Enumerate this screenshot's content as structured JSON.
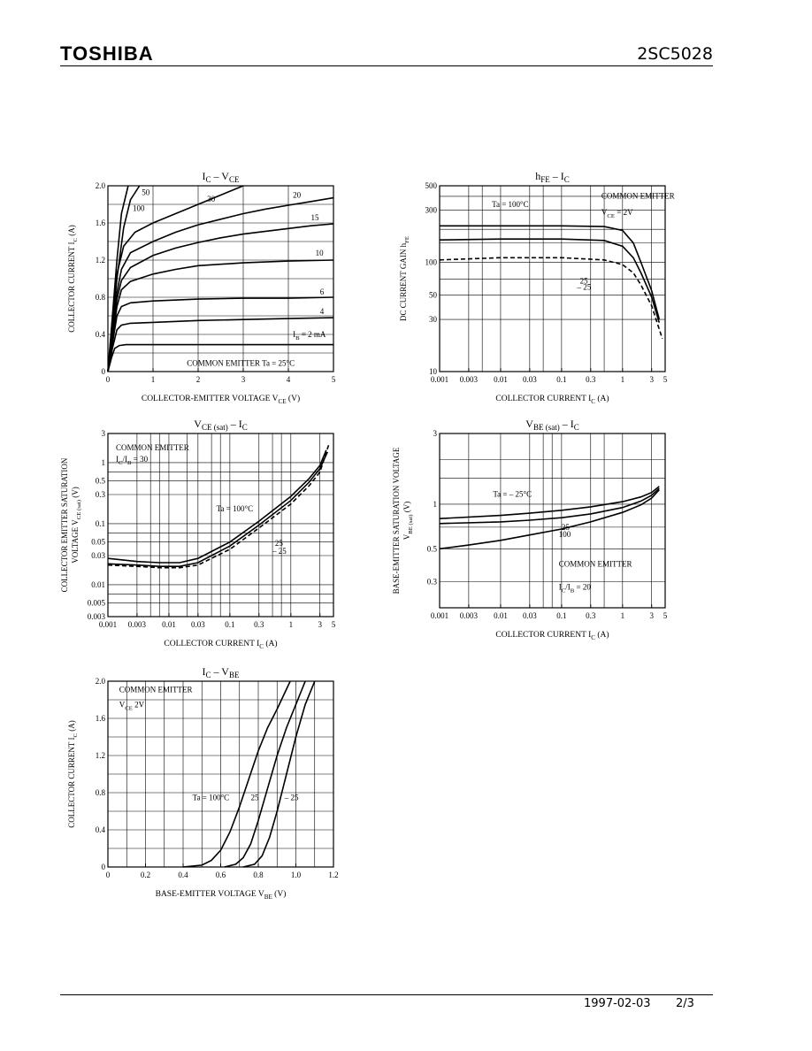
{
  "header": {
    "brand": "TOSHIBA",
    "part_number": "2SC5028"
  },
  "footer": {
    "date": "1997-02-03",
    "page": "2/3"
  },
  "chart_data": [
    {
      "id": "ic-vce",
      "type": "line",
      "title_main": "I",
      "title_sub": "C",
      "title_sep": "–",
      "title_main2": "V",
      "title_sub2": "CE",
      "xlabel": "COLLECTOR-EMITTER VOLTAGE   V",
      "xlabel_sub": "CE",
      "xlabel_unit": "(V)",
      "ylabel": "COLLECTOR CURRENT   I",
      "ylabel_sub": "C",
      "ylabel_unit": "(A)",
      "xscale": "linear",
      "yscale": "linear",
      "xlim": [
        0,
        5
      ],
      "ylim": [
        0,
        2.0
      ],
      "xticks": [
        0,
        1,
        2,
        3,
        4,
        5
      ],
      "xtick_labels": [
        "0",
        "1",
        "2",
        "3",
        "4",
        "5"
      ],
      "yticks": [
        0,
        0.4,
        0.8,
        1.2,
        1.6,
        2.0
      ],
      "ytick_labels": [
        "0",
        "0.4",
        "0.8",
        "1.2",
        "1.6",
        "2.0"
      ],
      "xgrid": [
        1,
        2,
        3,
        4
      ],
      "ygrid": [
        0.2,
        0.4,
        0.6,
        0.8,
        1.0,
        1.2,
        1.4,
        1.6,
        1.8
      ],
      "annotations": [
        {
          "text": "COMMON EMITTER    Ta = 25°C",
          "x": 1.75,
          "y": 0.06
        },
        {
          "text": "I",
          "sub": "B",
          "rest": " = 2 mA",
          "x": 4.1,
          "y": 0.37
        }
      ],
      "series": [
        {
          "label": "50",
          "label_x": 0.75,
          "label_y": 1.9,
          "x": [
            0,
            0.1,
            0.2,
            0.35,
            0.5,
            0.7
          ],
          "y": [
            0,
            0.5,
            1.0,
            1.55,
            1.85,
            2.0
          ]
        },
        {
          "label": "100",
          "label_x": 0.55,
          "label_y": 1.73,
          "x": [
            0,
            0.1,
            0.2,
            0.3,
            0.45
          ],
          "y": [
            0,
            0.6,
            1.2,
            1.7,
            2.0
          ]
        },
        {
          "label": "30",
          "label_x": 2.2,
          "label_y": 1.83,
          "x": [
            0,
            0.1,
            0.2,
            0.35,
            0.6,
            1.0,
            1.5,
            2.0,
            2.5,
            3.0
          ],
          "y": [
            0,
            0.55,
            1.05,
            1.35,
            1.5,
            1.6,
            1.7,
            1.8,
            1.9,
            2.0
          ]
        },
        {
          "label": "20",
          "label_x": 4.1,
          "label_y": 1.87,
          "x": [
            0,
            0.1,
            0.2,
            0.3,
            0.5,
            1.0,
            1.5,
            2.0,
            2.5,
            3.0,
            3.5,
            4.0,
            4.5,
            5.0
          ],
          "y": [
            0,
            0.45,
            0.85,
            1.1,
            1.28,
            1.4,
            1.5,
            1.58,
            1.64,
            1.7,
            1.75,
            1.79,
            1.83,
            1.87
          ]
        },
        {
          "label": "15",
          "label_x": 4.5,
          "label_y": 1.63,
          "x": [
            0,
            0.1,
            0.2,
            0.3,
            0.5,
            1.0,
            1.5,
            2.0,
            2.5,
            3.0,
            3.5,
            4.0,
            4.5,
            5.0
          ],
          "y": [
            0,
            0.4,
            0.78,
            0.98,
            1.12,
            1.25,
            1.33,
            1.39,
            1.44,
            1.48,
            1.51,
            1.54,
            1.57,
            1.59
          ]
        },
        {
          "label": "10",
          "label_x": 4.6,
          "label_y": 1.25,
          "x": [
            0,
            0.1,
            0.2,
            0.3,
            0.5,
            1.0,
            1.5,
            2.0,
            3.0,
            4.0,
            5.0
          ],
          "y": [
            0,
            0.35,
            0.7,
            0.88,
            0.97,
            1.05,
            1.1,
            1.14,
            1.17,
            1.19,
            1.2
          ]
        },
        {
          "label": "6",
          "label_x": 4.7,
          "label_y": 0.83,
          "x": [
            0,
            0.1,
            0.2,
            0.3,
            0.5,
            1.0,
            2.0,
            3.0,
            4.0,
            5.0
          ],
          "y": [
            0,
            0.3,
            0.6,
            0.7,
            0.74,
            0.76,
            0.78,
            0.79,
            0.79,
            0.8
          ]
        },
        {
          "label": "4",
          "label_x": 4.7,
          "label_y": 0.62,
          "x": [
            0,
            0.1,
            0.2,
            0.3,
            0.5,
            1.0,
            2.0,
            3.0,
            4.0,
            5.0
          ],
          "y": [
            0,
            0.25,
            0.45,
            0.5,
            0.52,
            0.53,
            0.55,
            0.56,
            0.57,
            0.58
          ]
        },
        {
          "label": "",
          "x": [
            0,
            0.08,
            0.15,
            0.25,
            0.4,
            1.0,
            2.0,
            3.0,
            4.0,
            5.0
          ],
          "y": [
            0,
            0.15,
            0.25,
            0.28,
            0.29,
            0.29,
            0.29,
            0.29,
            0.29,
            0.29
          ]
        }
      ]
    },
    {
      "id": "hfe-ic",
      "type": "line",
      "title_main": "h",
      "title_sub": "FE",
      "title_sep": "–",
      "title_main2": "I",
      "title_sub2": "C",
      "xlabel": "COLLECTOR CURRENT   I",
      "xlabel_sub": "C",
      "xlabel_unit": "(A)",
      "ylabel": "DC CURRENT GAIN   h",
      "ylabel_sub": "FE",
      "ylabel_unit": "",
      "xscale": "log",
      "yscale": "log",
      "xlim": [
        0.001,
        5
      ],
      "ylim": [
        10,
        500
      ],
      "xticks": [
        0.001,
        0.003,
        0.01,
        0.03,
        0.1,
        0.3,
        1,
        3,
        5
      ],
      "xtick_labels": [
        "0.001",
        "0.003",
        "0.01",
        "0.03",
        "0.1",
        "0.3",
        "1",
        "3",
        "5"
      ],
      "yticks": [
        10,
        30,
        50,
        100,
        300,
        500
      ],
      "ytick_labels": [
        "10",
        "30",
        "50",
        "100",
        "300",
        "500"
      ],
      "xgrid": [
        0.003,
        0.005,
        0.01,
        0.03,
        0.05,
        0.1,
        0.3,
        0.5,
        1,
        3
      ],
      "ygrid": [
        30,
        50,
        70,
        100,
        150,
        200,
        300,
        400
      ],
      "annotations": [
        {
          "text": "COMMON EMITTER",
          "x": 0.45,
          "y": 380
        },
        {
          "text": "V",
          "sub": "CE",
          "rest": " = 2V",
          "x": 0.45,
          "y": 270
        },
        {
          "text": "Ta = 100°C",
          "x": 0.0072,
          "y": 320
        },
        {
          "text": "25",
          "x": 0.2,
          "y": 64
        },
        {
          "text": "– 25",
          "x": 0.18,
          "y": 56
        }
      ],
      "series": [
        {
          "label": "100",
          "x": [
            0.001,
            0.01,
            0.1,
            0.5,
            1.0,
            1.5,
            2.0,
            3.0,
            4.0
          ],
          "y": [
            215,
            215,
            215,
            212,
            195,
            150,
            100,
            55,
            30
          ],
          "dash": false
        },
        {
          "label": "25",
          "x": [
            0.001,
            0.01,
            0.1,
            0.5,
            1.0,
            1.5,
            2.0,
            3.0,
            4.0
          ],
          "y": [
            160,
            163,
            163,
            158,
            140,
            110,
            80,
            48,
            28
          ],
          "dash": false
        },
        {
          "label": "-25",
          "x": [
            0.001,
            0.01,
            0.1,
            0.5,
            1.0,
            1.5,
            2.0,
            3.0,
            4.5
          ],
          "y": [
            105,
            110,
            110,
            105,
            95,
            80,
            62,
            40,
            20
          ],
          "dash": true
        }
      ]
    },
    {
      "id": "vcesat-ic",
      "type": "line",
      "title_main": "V",
      "title_sub": "CE (sat)",
      "title_sep": "–",
      "title_main2": "I",
      "title_sub2": "C",
      "xlabel": "COLLECTOR CURRENT   I",
      "xlabel_sub": "C",
      "xlabel_unit": "(A)",
      "ylabel": "COLLECTOR EMITTER SATURATION",
      "ylabel2": "VOLTAGE   V",
      "ylabel2_sub": "CE (sat)",
      "ylabel_unit": "(V)",
      "xscale": "log",
      "yscale": "log",
      "xlim": [
        0.001,
        5
      ],
      "ylim": [
        0.003,
        3
      ],
      "xticks": [
        0.001,
        0.003,
        0.01,
        0.03,
        0.1,
        0.3,
        1,
        3,
        5
      ],
      "xtick_labels": [
        "0.001",
        "0.003",
        "0.01",
        "0.03",
        "0.1",
        "0.3",
        "1",
        "3",
        "5"
      ],
      "yticks": [
        0.003,
        0.005,
        0.01,
        0.03,
        0.05,
        0.1,
        0.3,
        0.5,
        1,
        3
      ],
      "ytick_labels": [
        "0.003",
        "0.005",
        "0.01",
        "0.03",
        "0.05",
        "0.1",
        "0.3",
        "0.5",
        "1",
        "3"
      ],
      "xgrid": [
        0.003,
        0.005,
        0.007,
        0.01,
        0.02,
        0.03,
        0.05,
        0.07,
        0.1,
        0.3,
        0.5,
        0.7,
        1,
        3
      ],
      "ygrid": [
        0.005,
        0.007,
        0.01,
        0.03,
        0.05,
        0.07,
        0.1,
        0.3,
        0.5,
        0.7,
        1
      ],
      "annotations": [
        {
          "text": "COMMON EMITTER",
          "x": 0.00135,
          "y": 1.6
        },
        {
          "text": "I",
          "sub": "C",
          "rest": "/I",
          "sub2": "B",
          "rest2": " = 30",
          "x": 0.00135,
          "y": 1.03
        },
        {
          "text": "Ta = 100°C",
          "x": 0.06,
          "y": 0.16
        },
        {
          "text": "25",
          "x": 0.55,
          "y": 0.043
        },
        {
          "text": "– 25",
          "x": 0.5,
          "y": 0.032
        }
      ],
      "series": [
        {
          "label": "100",
          "x": [
            0.001,
            0.003,
            0.007,
            0.015,
            0.03,
            0.1,
            0.3,
            1.0,
            2.0,
            3.0,
            3.8
          ],
          "y": [
            0.027,
            0.024,
            0.023,
            0.023,
            0.027,
            0.05,
            0.11,
            0.28,
            0.55,
            0.9,
            1.6
          ],
          "dash": false
        },
        {
          "label": "25",
          "x": [
            0.001,
            0.003,
            0.007,
            0.015,
            0.03,
            0.1,
            0.3,
            1.0,
            2.0,
            3.0,
            4.0
          ],
          "y": [
            0.022,
            0.021,
            0.02,
            0.02,
            0.023,
            0.043,
            0.095,
            0.24,
            0.48,
            0.8,
            1.5
          ],
          "dash": false
        },
        {
          "label": "-25",
          "x": [
            0.001,
            0.003,
            0.007,
            0.015,
            0.03,
            0.1,
            0.3,
            1.0,
            2.0,
            3.0,
            4.2
          ],
          "y": [
            0.021,
            0.02,
            0.019,
            0.019,
            0.021,
            0.038,
            0.085,
            0.21,
            0.42,
            0.7,
            2.0
          ],
          "dash": true
        }
      ]
    },
    {
      "id": "vbesat-ic",
      "type": "line",
      "title_main": "V",
      "title_sub": "BE (sat)",
      "title_sep": "–",
      "title_main2": "I",
      "title_sub2": "C",
      "xlabel": "COLLECTOR CURRENT   I",
      "xlabel_sub": "C",
      "xlabel_unit": "(A)",
      "ylabel": "BASE-EMITTER SATURATION VOLTAGE",
      "ylabel2": "V",
      "ylabel2_sub": "BE (sat)",
      "ylabel_unit": "(V)",
      "xscale": "log",
      "yscale": "log",
      "xlim": [
        0.001,
        5
      ],
      "ylim": [
        0.2,
        3
      ],
      "xticks": [
        0.001,
        0.003,
        0.01,
        0.03,
        0.1,
        0.3,
        1,
        3,
        5
      ],
      "xtick_labels": [
        "0.001",
        "0.003",
        "0.01",
        "0.03",
        "0.1",
        "0.3",
        "1",
        "3",
        "5"
      ],
      "yticks": [
        0.3,
        0.5,
        1,
        3
      ],
      "ytick_labels": [
        "0.3",
        "0.5",
        "1",
        "3"
      ],
      "xgrid": [
        0.003,
        0.01,
        0.03,
        0.05,
        0.07,
        0.1,
        0.3,
        0.5,
        1,
        3
      ],
      "ygrid": [
        0.3,
        0.5,
        0.7,
        1,
        1.5,
        2
      ],
      "annotations": [
        {
          "text": "Ta = – 25°C",
          "x": 0.0075,
          "y": 1.12
        },
        {
          "text": "25",
          "x": 0.1,
          "y": 0.67
        },
        {
          "text": "100",
          "x": 0.09,
          "y": 0.6
        },
        {
          "text": "COMMON EMITTER",
          "x": 0.09,
          "y": 0.38
        },
        {
          "text": "I",
          "sub": "C",
          "rest": "/I",
          "sub2": "B",
          "rest2": " = 20",
          "x": 0.09,
          "y": 0.265
        }
      ],
      "series": [
        {
          "label": "-25",
          "x": [
            0.001,
            0.01,
            0.03,
            0.1,
            0.3,
            1.0,
            2.0,
            3.0,
            4.0
          ],
          "y": [
            0.8,
            0.84,
            0.87,
            0.91,
            0.96,
            1.04,
            1.12,
            1.2,
            1.32
          ],
          "dash": false
        },
        {
          "label": "25",
          "x": [
            0.001,
            0.01,
            0.03,
            0.1,
            0.3,
            1.0,
            2.0,
            3.0,
            4.0
          ],
          "y": [
            0.74,
            0.76,
            0.78,
            0.81,
            0.86,
            0.95,
            1.05,
            1.15,
            1.28
          ],
          "dash": false
        },
        {
          "label": "100",
          "x": [
            0.001,
            0.003,
            0.01,
            0.03,
            0.1,
            0.3,
            1.0,
            2.0,
            3.0,
            4.0
          ],
          "y": [
            0.5,
            0.53,
            0.57,
            0.62,
            0.68,
            0.76,
            0.88,
            0.99,
            1.1,
            1.25
          ],
          "dash": false
        }
      ]
    },
    {
      "id": "ic-vbe",
      "type": "line",
      "title_main": "I",
      "title_sub": "C",
      "title_sep": "–",
      "title_main2": "V",
      "title_sub2": "BE",
      "xlabel": "BASE-EMITTER VOLTAGE   V",
      "xlabel_sub": "BE",
      "xlabel_unit": "(V)",
      "ylabel": "COLLECTOR CURRENT   I",
      "ylabel_sub": "C",
      "ylabel_unit": "(A)",
      "xscale": "linear",
      "yscale": "linear",
      "xlim": [
        0,
        1.2
      ],
      "ylim": [
        0,
        2.0
      ],
      "xticks": [
        0,
        0.2,
        0.4,
        0.6,
        0.8,
        1.0,
        1.2
      ],
      "xtick_labels": [
        "0",
        "0.2",
        "0.4",
        "0.6",
        "0.8",
        "1.0",
        "1.2"
      ],
      "yticks": [
        0,
        0.4,
        0.8,
        1.2,
        1.6,
        2.0
      ],
      "ytick_labels": [
        "0",
        "0.4",
        "0.8",
        "1.2",
        "1.6",
        "2.0"
      ],
      "xgrid": [
        0.1,
        0.2,
        0.3,
        0.4,
        0.5,
        0.6,
        0.7,
        0.8,
        0.9,
        1.0,
        1.1
      ],
      "ygrid": [
        0.2,
        0.4,
        0.6,
        0.8,
        1.0,
        1.2,
        1.4,
        1.6,
        1.8
      ],
      "annotations": [
        {
          "text": "COMMON EMITTER",
          "x": 0.06,
          "y": 1.88
        },
        {
          "text": "V",
          "sub": "CE",
          "rest": "   2V",
          "x": 0.06,
          "y": 1.72
        },
        {
          "text": "Ta = 100°C",
          "x": 0.45,
          "y": 0.72
        },
        {
          "text": "25",
          "x": 0.76,
          "y": 0.72
        },
        {
          "text": "– 25",
          "x": 0.94,
          "y": 0.72
        }
      ],
      "series": [
        {
          "label": "100",
          "x": [
            0.4,
            0.5,
            0.55,
            0.6,
            0.65,
            0.7,
            0.75,
            0.8,
            0.85,
            0.9,
            0.97
          ],
          "y": [
            0,
            0.02,
            0.07,
            0.18,
            0.38,
            0.65,
            0.95,
            1.25,
            1.5,
            1.7,
            2.0
          ]
        },
        {
          "label": "25",
          "x": [
            0.62,
            0.68,
            0.72,
            0.76,
            0.8,
            0.85,
            0.9,
            0.95,
            1.0,
            1.05
          ],
          "y": [
            0,
            0.03,
            0.1,
            0.25,
            0.5,
            0.85,
            1.2,
            1.5,
            1.75,
            2.0
          ]
        },
        {
          "label": "-25",
          "x": [
            0.72,
            0.78,
            0.82,
            0.86,
            0.9,
            0.95,
            1.0,
            1.05,
            1.1
          ],
          "y": [
            0,
            0.03,
            0.12,
            0.32,
            0.6,
            1.0,
            1.4,
            1.75,
            2.0
          ]
        }
      ]
    }
  ]
}
